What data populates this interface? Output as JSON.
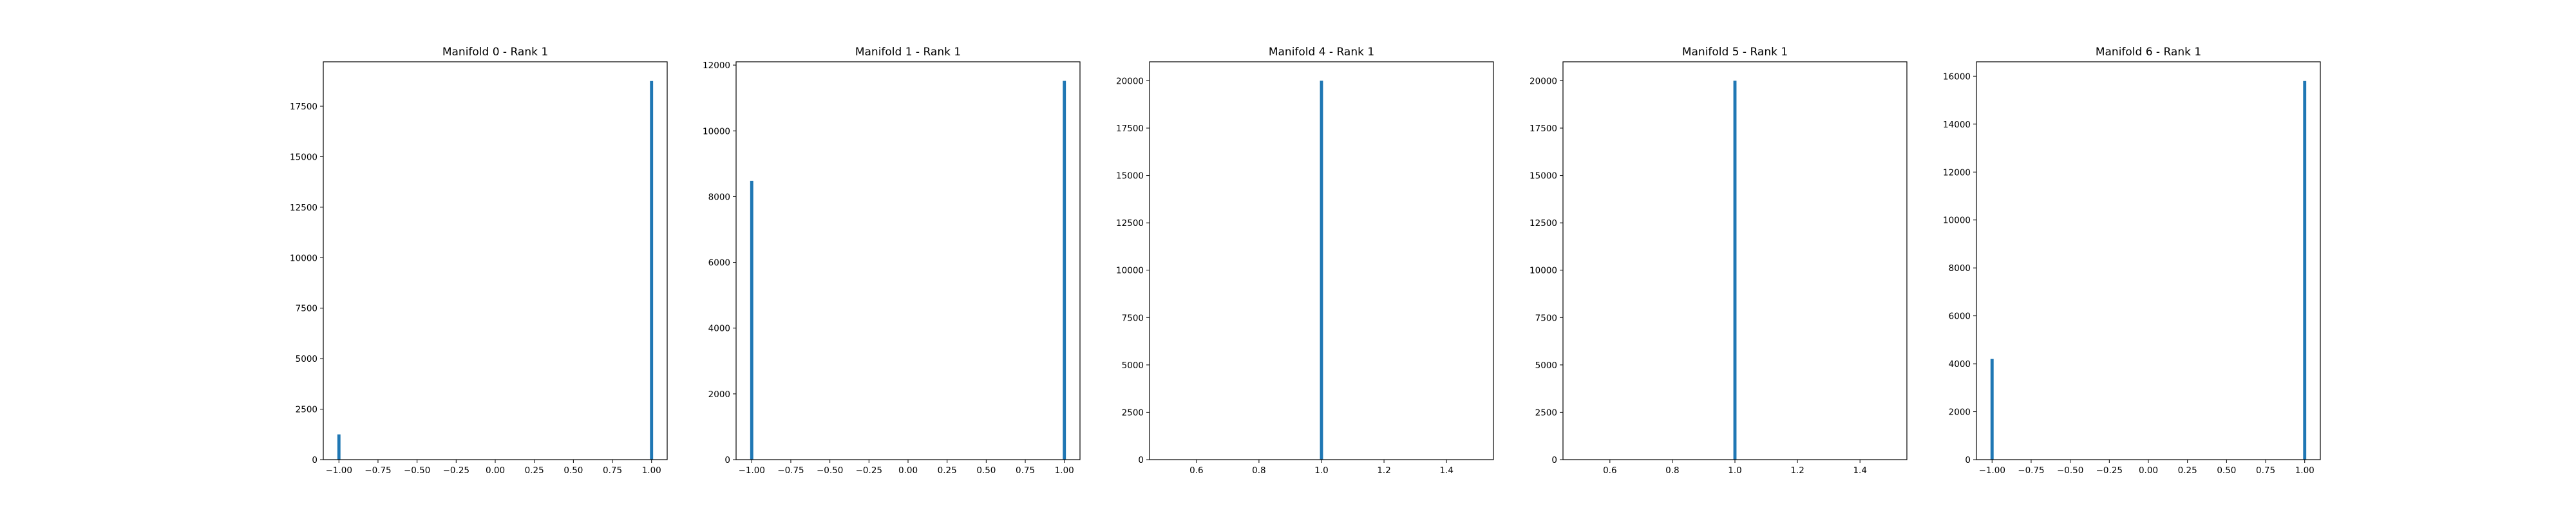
{
  "chart_data": [
    {
      "type": "bar",
      "title": "Manifold 0 - Rank 1",
      "xlim": [
        -1.1,
        1.1
      ],
      "ylim": [
        0,
        19700
      ],
      "xticks": [
        {
          "value": -1.0,
          "label": "−1.00"
        },
        {
          "value": -0.75,
          "label": "−0.75"
        },
        {
          "value": -0.5,
          "label": "−0.50"
        },
        {
          "value": -0.25,
          "label": "−0.25"
        },
        {
          "value": 0.0,
          "label": "0.00"
        },
        {
          "value": 0.25,
          "label": "0.25"
        },
        {
          "value": 0.5,
          "label": "0.50"
        },
        {
          "value": 0.75,
          "label": "0.75"
        },
        {
          "value": 1.0,
          "label": "1.00"
        }
      ],
      "yticks": [
        {
          "value": 0,
          "label": "0"
        },
        {
          "value": 2500,
          "label": "2500"
        },
        {
          "value": 5000,
          "label": "5000"
        },
        {
          "value": 7500,
          "label": "7500"
        },
        {
          "value": 10000,
          "label": "10000"
        },
        {
          "value": 12500,
          "label": "12500"
        },
        {
          "value": 15000,
          "label": "15000"
        },
        {
          "value": 17500,
          "label": "17500"
        }
      ],
      "bar_width": 0.02,
      "bars": [
        {
          "x": -1.0,
          "value": 1250
        },
        {
          "x": 1.0,
          "value": 18750
        }
      ],
      "color": "#1f77b4"
    },
    {
      "type": "bar",
      "title": "Manifold 1 - Rank 1",
      "xlim": [
        -1.1,
        1.1
      ],
      "ylim": [
        0,
        12100
      ],
      "xticks": [
        {
          "value": -1.0,
          "label": "−1.00"
        },
        {
          "value": -0.75,
          "label": "−0.75"
        },
        {
          "value": -0.5,
          "label": "−0.50"
        },
        {
          "value": -0.25,
          "label": "−0.25"
        },
        {
          "value": 0.0,
          "label": "0.00"
        },
        {
          "value": 0.25,
          "label": "0.25"
        },
        {
          "value": 0.5,
          "label": "0.50"
        },
        {
          "value": 0.75,
          "label": "0.75"
        },
        {
          "value": 1.0,
          "label": "1.00"
        }
      ],
      "yticks": [
        {
          "value": 0,
          "label": "0"
        },
        {
          "value": 2000,
          "label": "2000"
        },
        {
          "value": 4000,
          "label": "4000"
        },
        {
          "value": 6000,
          "label": "6000"
        },
        {
          "value": 8000,
          "label": "8000"
        },
        {
          "value": 10000,
          "label": "10000"
        },
        {
          "value": 12000,
          "label": "12000"
        }
      ],
      "bar_width": 0.02,
      "bars": [
        {
          "x": -1.0,
          "value": 8480
        },
        {
          "x": 1.0,
          "value": 11520
        }
      ],
      "color": "#1f77b4"
    },
    {
      "type": "bar",
      "title": "Manifold 4 - Rank 1",
      "xlim": [
        0.45,
        1.55
      ],
      "ylim": [
        0,
        21000
      ],
      "xticks": [
        {
          "value": 0.6,
          "label": "0.6"
        },
        {
          "value": 0.8,
          "label": "0.8"
        },
        {
          "value": 1.0,
          "label": "1.0"
        },
        {
          "value": 1.2,
          "label": "1.2"
        },
        {
          "value": 1.4,
          "label": "1.4"
        }
      ],
      "yticks": [
        {
          "value": 0,
          "label": "0"
        },
        {
          "value": 2500,
          "label": "2500"
        },
        {
          "value": 5000,
          "label": "5000"
        },
        {
          "value": 7500,
          "label": "7500"
        },
        {
          "value": 10000,
          "label": "10000"
        },
        {
          "value": 12500,
          "label": "12500"
        },
        {
          "value": 15000,
          "label": "15000"
        },
        {
          "value": 17500,
          "label": "17500"
        },
        {
          "value": 20000,
          "label": "20000"
        }
      ],
      "bar_width": 0.01,
      "bars": [
        {
          "x": 1.0,
          "value": 20000
        }
      ],
      "color": "#1f77b4"
    },
    {
      "type": "bar",
      "title": "Manifold 5 - Rank 1",
      "xlim": [
        0.45,
        1.55
      ],
      "ylim": [
        0,
        21000
      ],
      "xticks": [
        {
          "value": 0.6,
          "label": "0.6"
        },
        {
          "value": 0.8,
          "label": "0.8"
        },
        {
          "value": 1.0,
          "label": "1.0"
        },
        {
          "value": 1.2,
          "label": "1.2"
        },
        {
          "value": 1.4,
          "label": "1.4"
        }
      ],
      "yticks": [
        {
          "value": 0,
          "label": "0"
        },
        {
          "value": 2500,
          "label": "2500"
        },
        {
          "value": 5000,
          "label": "5000"
        },
        {
          "value": 7500,
          "label": "7500"
        },
        {
          "value": 10000,
          "label": "10000"
        },
        {
          "value": 12500,
          "label": "12500"
        },
        {
          "value": 15000,
          "label": "15000"
        },
        {
          "value": 17500,
          "label": "17500"
        },
        {
          "value": 20000,
          "label": "20000"
        }
      ],
      "bar_width": 0.01,
      "bars": [
        {
          "x": 1.0,
          "value": 20000
        }
      ],
      "color": "#1f77b4"
    },
    {
      "type": "bar",
      "title": "Manifold 6 - Rank 1",
      "xlim": [
        -1.1,
        1.1
      ],
      "ylim": [
        0,
        16600
      ],
      "xticks": [
        {
          "value": -1.0,
          "label": "−1.00"
        },
        {
          "value": -0.75,
          "label": "−0.75"
        },
        {
          "value": -0.5,
          "label": "−0.50"
        },
        {
          "value": -0.25,
          "label": "−0.25"
        },
        {
          "value": 0.0,
          "label": "0.00"
        },
        {
          "value": 0.25,
          "label": "0.25"
        },
        {
          "value": 0.5,
          "label": "0.50"
        },
        {
          "value": 0.75,
          "label": "0.75"
        },
        {
          "value": 1.0,
          "label": "1.00"
        }
      ],
      "yticks": [
        {
          "value": 0,
          "label": "0"
        },
        {
          "value": 2000,
          "label": "2000"
        },
        {
          "value": 4000,
          "label": "4000"
        },
        {
          "value": 6000,
          "label": "6000"
        },
        {
          "value": 8000,
          "label": "8000"
        },
        {
          "value": 10000,
          "label": "10000"
        },
        {
          "value": 12000,
          "label": "12000"
        },
        {
          "value": 14000,
          "label": "14000"
        },
        {
          "value": 16000,
          "label": "16000"
        }
      ],
      "bar_width": 0.02,
      "bars": [
        {
          "x": -1.0,
          "value": 4200
        },
        {
          "x": 1.0,
          "value": 15800
        }
      ],
      "color": "#1f77b4"
    }
  ]
}
